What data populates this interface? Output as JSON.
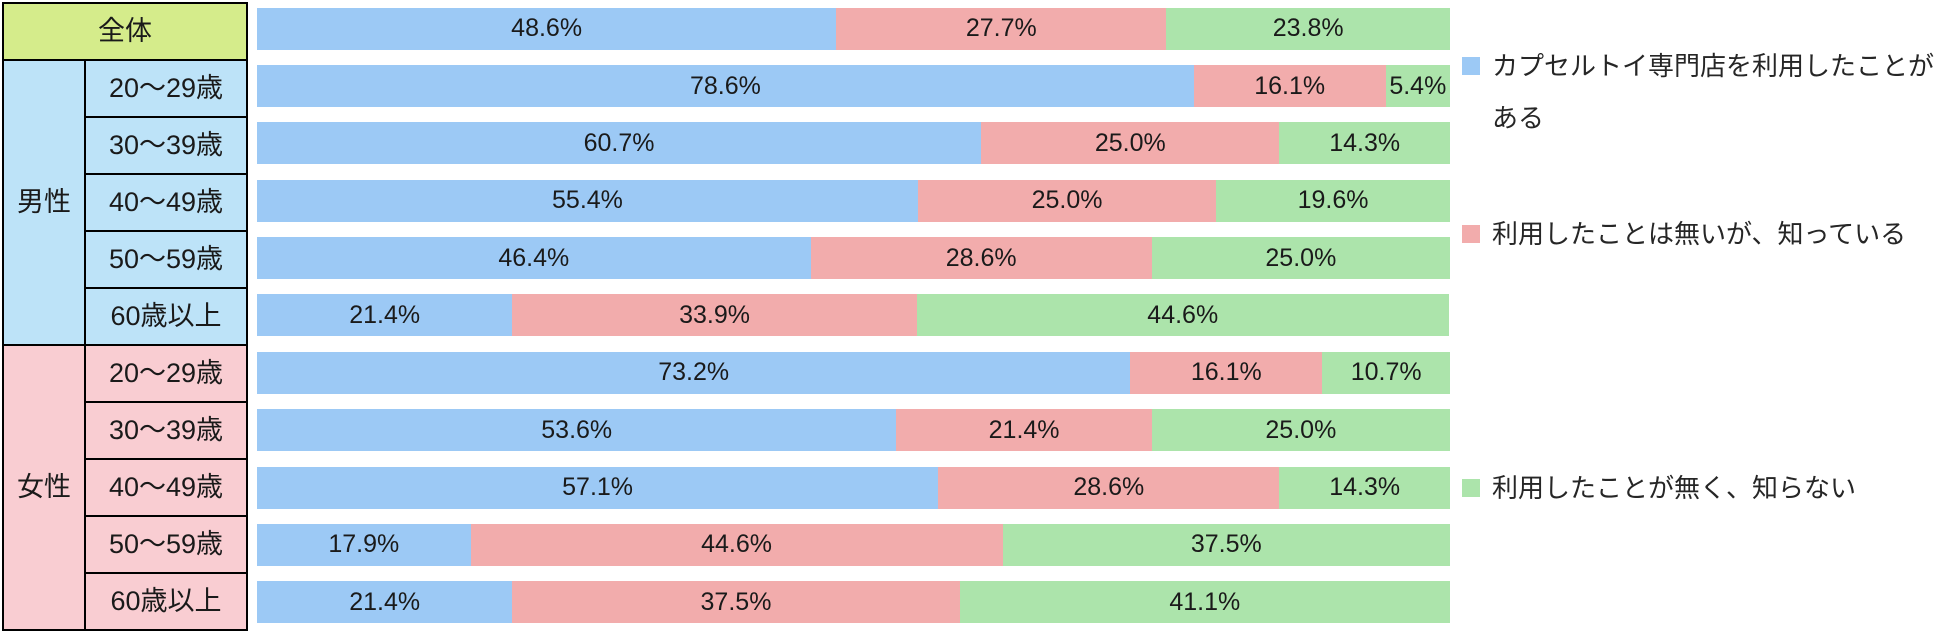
{
  "table": {
    "overall_label": "全体",
    "groups": [
      {
        "label": "男性",
        "ages": [
          "20〜29歳",
          "30〜39歳",
          "40〜49歳",
          "50〜59歳",
          "60歳以上"
        ]
      },
      {
        "label": "女性",
        "ages": [
          "20〜29歳",
          "30〜39歳",
          "40〜49歳",
          "50〜59歳",
          "60歳以上"
        ]
      }
    ]
  },
  "colors": {
    "bar_used": "#9CC9F5",
    "bar_known": "#F2ACAC",
    "bar_unknown": "#ACE4AB",
    "cell_overall": "#D5EC8B",
    "cell_male": "#BDE3F8",
    "cell_female": "#F9CDD2"
  },
  "chart_data": {
    "type": "bar",
    "stacked": true,
    "orientation": "horizontal",
    "value_unit": "%",
    "xlim": [
      0,
      100
    ],
    "grid": false,
    "legend_position": "right",
    "categories": [
      "全体",
      "男性 20〜29歳",
      "男性 30〜39歳",
      "男性 40〜49歳",
      "男性 50〜59歳",
      "男性 60歳以上",
      "女性 20〜29歳",
      "女性 30〜39歳",
      "女性 40〜49歳",
      "女性 50〜59歳",
      "女性 60歳以上"
    ],
    "legend": [
      {
        "label": "カプセルトイ専門店を利用したことがある",
        "color": "#9CC9F5"
      },
      {
        "label": "利用したことは無いが、知っている",
        "color": "#F2ACAC"
      },
      {
        "label": "利用したことが無く、知らない",
        "color": "#ACE4AB"
      }
    ],
    "series": [
      {
        "name": "カプセルトイ専門店を利用したことがある",
        "color": "#9CC9F5",
        "values": [
          48.6,
          78.6,
          60.7,
          55.4,
          46.4,
          21.4,
          73.2,
          53.6,
          57.1,
          17.9,
          21.4
        ]
      },
      {
        "name": "利用したことは無いが、知っている",
        "color": "#F2ACAC",
        "values": [
          27.7,
          16.1,
          25.0,
          25.0,
          28.6,
          33.9,
          16.1,
          21.4,
          28.6,
          44.6,
          37.5
        ]
      },
      {
        "name": "利用したことが無く、知らない",
        "color": "#ACE4AB",
        "values": [
          23.8,
          5.4,
          14.3,
          19.6,
          25.0,
          44.6,
          10.7,
          25.0,
          14.3,
          37.5,
          41.1
        ]
      }
    ],
    "rows": [
      {
        "category": "全体",
        "values": [
          48.6,
          27.7,
          23.8
        ],
        "labels": [
          "48.6%",
          "27.7%",
          "23.8%"
        ]
      },
      {
        "category": "男性 20〜29歳",
        "values": [
          78.6,
          16.1,
          5.4
        ],
        "labels": [
          "78.6%",
          "16.1%",
          "5.4%"
        ]
      },
      {
        "category": "男性 30〜39歳",
        "values": [
          60.7,
          25.0,
          14.3
        ],
        "labels": [
          "60.7%",
          "25.0%",
          "14.3%"
        ]
      },
      {
        "category": "男性 40〜49歳",
        "values": [
          55.4,
          25.0,
          19.6
        ],
        "labels": [
          "55.4%",
          "25.0%",
          "19.6%"
        ]
      },
      {
        "category": "男性 50〜59歳",
        "values": [
          46.4,
          28.6,
          25.0
        ],
        "labels": [
          "46.4%",
          "28.6%",
          "25.0%"
        ]
      },
      {
        "category": "男性 60歳以上",
        "values": [
          21.4,
          33.9,
          44.6
        ],
        "labels": [
          "21.4%",
          "33.9%",
          "44.6%"
        ]
      },
      {
        "category": "女性 20〜29歳",
        "values": [
          73.2,
          16.1,
          10.7
        ],
        "labels": [
          "73.2%",
          "16.1%",
          "10.7%"
        ]
      },
      {
        "category": "女性 30〜39歳",
        "values": [
          53.6,
          21.4,
          25.0
        ],
        "labels": [
          "53.6%",
          "21.4%",
          "25.0%"
        ]
      },
      {
        "category": "女性 40〜49歳",
        "values": [
          57.1,
          28.6,
          14.3
        ],
        "labels": [
          "57.1%",
          "28.6%",
          "14.3%"
        ]
      },
      {
        "category": "女性 50〜59歳",
        "values": [
          17.9,
          44.6,
          37.5
        ],
        "labels": [
          "17.9%",
          "44.6%",
          "37.5%"
        ]
      },
      {
        "category": "女性 60歳以上",
        "values": [
          21.4,
          37.5,
          41.1
        ],
        "labels": [
          "21.4%",
          "37.5%",
          "41.1%"
        ]
      }
    ]
  }
}
